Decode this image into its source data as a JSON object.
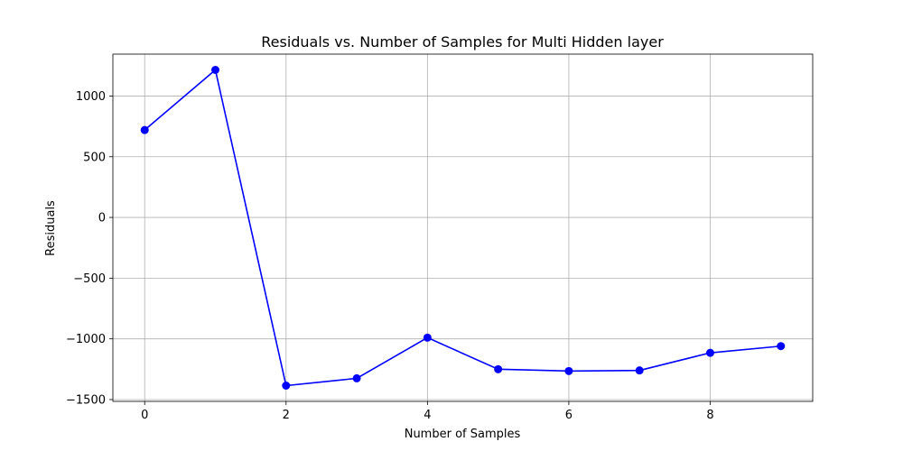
{
  "chart_data": {
    "type": "line",
    "title": "Residuals vs. Number of Samples for Multi Hidden layer",
    "xlabel": "Number of Samples",
    "ylabel": "Residuals",
    "x": [
      0,
      1,
      2,
      3,
      4,
      5,
      6,
      7,
      8,
      9
    ],
    "series": [
      {
        "values": [
          720,
          1215,
          -1385,
          -1325,
          -990,
          -1250,
          -1265,
          -1260,
          -1115,
          -1060
        ],
        "color": "#0000ff",
        "marker": "circle"
      }
    ],
    "xlim": [
      -0.45,
      9.45
    ],
    "ylim": [
      -1515,
      1345
    ],
    "xticks": [
      0,
      2,
      4,
      6,
      8
    ],
    "yticks": [
      -1500,
      -1000,
      -500,
      0,
      500,
      1000
    ],
    "xtick_labels": [
      "0",
      "2",
      "4",
      "6",
      "8"
    ],
    "ytick_labels": [
      "−1500",
      "−1000",
      "−500",
      "0",
      "500",
      "1000"
    ],
    "grid": true,
    "legend": "none"
  }
}
